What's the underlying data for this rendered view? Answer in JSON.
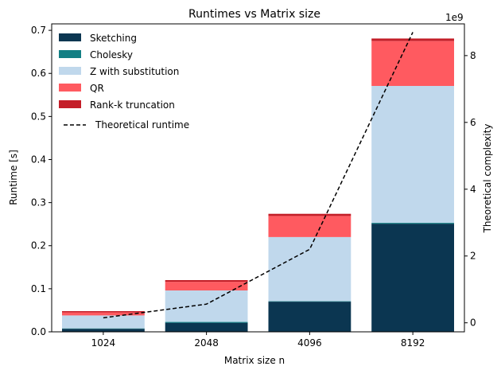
{
  "chart_data": {
    "type": "bar",
    "stacked": true,
    "title": "Runtimes vs Matrix size",
    "xlabel": "Matrix size n",
    "ylabel": "Runtime [s]",
    "y2label": "Theoretical complexity",
    "y2_offset_label": "1e9",
    "categories": [
      "1024",
      "2048",
      "4096",
      "8192"
    ],
    "ylim": [
      0,
      0.715
    ],
    "yticks": [
      0.0,
      0.1,
      0.2,
      0.3,
      0.4,
      0.5,
      0.6,
      0.7
    ],
    "ytick_labels": [
      "0.0",
      "0.1",
      "0.2",
      "0.3",
      "0.4",
      "0.5",
      "0.6",
      "0.7"
    ],
    "y2lim": [
      -0.27,
      8.95
    ],
    "y2ticks": [
      0,
      2,
      4,
      6,
      8
    ],
    "y2tick_labels": [
      "0",
      "2",
      "4",
      "6",
      "8"
    ],
    "series": [
      {
        "name": "Sketching",
        "color": "#0b3651",
        "values": [
          0.007,
          0.021,
          0.07,
          0.251
        ]
      },
      {
        "name": "Cholesky",
        "color": "#137f84",
        "values": [
          0.001,
          0.002,
          0.001,
          0.002
        ]
      },
      {
        "name": "Z with substitution",
        "color": "#c0d8ec",
        "values": [
          0.03,
          0.073,
          0.149,
          0.318
        ]
      },
      {
        "name": "QR",
        "color": "#ff5a60",
        "values": [
          0.007,
          0.02,
          0.049,
          0.104
        ]
      },
      {
        "name": "Rank-k truncation",
        "color": "#c41e28",
        "values": [
          0.003,
          0.004,
          0.005,
          0.006
        ]
      }
    ],
    "line": {
      "name": "Theoretical runtime",
      "style": "dashed",
      "color": "#000000",
      "axis": "right",
      "values": [
        0.15,
        0.56,
        2.2,
        8.7
      ]
    },
    "legend_position": "top-left",
    "grid": false
  }
}
